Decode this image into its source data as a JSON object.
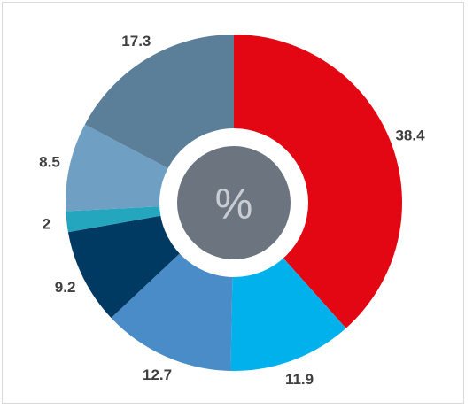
{
  "chart_data": {
    "type": "pie",
    "variant": "donut",
    "center_text": "%",
    "start_angle_deg": 0,
    "direction": "clockwise",
    "slices": [
      {
        "label": "38.4",
        "value": 38.4,
        "color": "#e30613"
      },
      {
        "label": "11.9",
        "value": 11.9,
        "color": "#00b1eb"
      },
      {
        "label": "12.7",
        "value": 12.7,
        "color": "#4a8cc8"
      },
      {
        "label": "9.2",
        "value": 9.2,
        "color": "#003a63"
      },
      {
        "label": "2",
        "value": 2,
        "color": "#24a6bf"
      },
      {
        "label": "8.5",
        "value": 8.5,
        "color": "#6fa0c3"
      },
      {
        "label": "17.3",
        "value": 17.3,
        "color": "#5b7e99"
      }
    ],
    "ring_gap_color": "#ffffff",
    "center_color": "#6c7480",
    "center_text_color": "#c9cdd3",
    "label_color": "#3f3f3f"
  }
}
